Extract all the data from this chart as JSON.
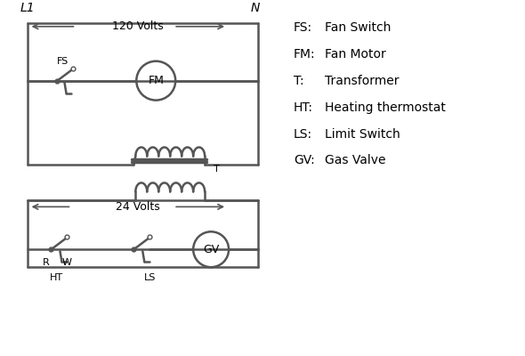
{
  "bg_color": "#ffffff",
  "line_color": "#555555",
  "text_color": "#000000",
  "line_width": 1.8,
  "legend_items": [
    [
      "FS:",
      "Fan Switch"
    ],
    [
      "FM:",
      "Fan Motor"
    ],
    [
      "T:",
      "Transformer"
    ],
    [
      "HT:",
      "Heating thermostat"
    ],
    [
      "LS:",
      "Limit Switch"
    ],
    [
      "GV:",
      "Gas Valve"
    ]
  ],
  "top_label_L1": "L1",
  "top_label_N": "N",
  "volts_120": "120 Volts",
  "volts_24": "24 Volts",
  "label_R": "R",
  "label_W": "W",
  "label_HT": "HT",
  "label_LS": "LS",
  "label_T": "T"
}
